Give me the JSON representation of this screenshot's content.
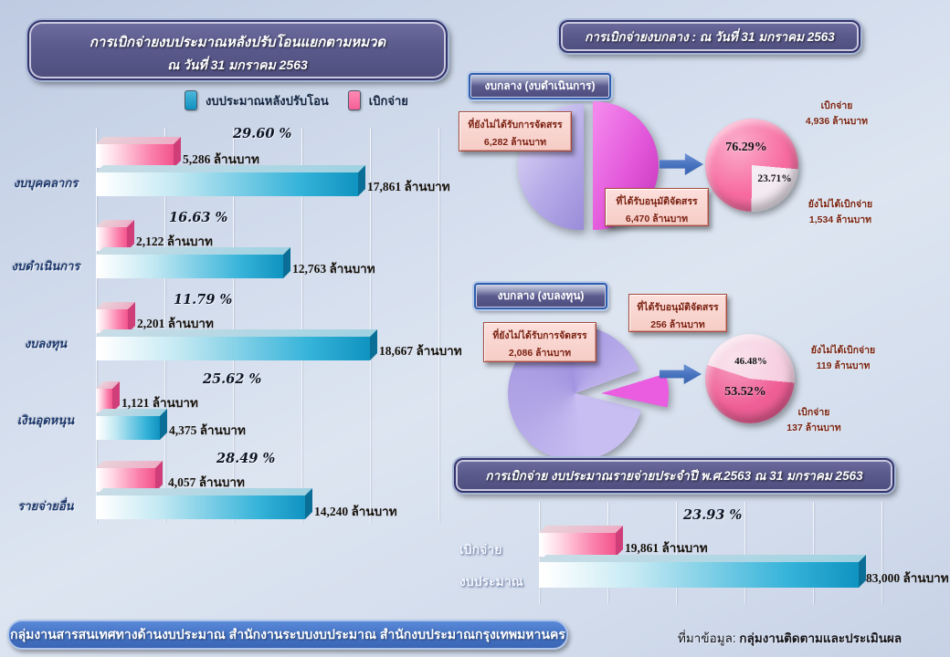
{
  "left_chart": {
    "title_line1": "การเบิกจ่ายงบประมาณหลังปรับโอนแยกตามหมวด",
    "title_line2": "ณ วันที่ 31 มกราคม 2563",
    "legend": [
      {
        "label": "งบประมาณหลังปรับโอน",
        "color": "#1090c0"
      },
      {
        "label": "เบิกจ่าย",
        "color": "#f76ba0"
      }
    ],
    "unit": "ล้านบาท",
    "rows": [
      {
        "category": "งบบุคคลากร",
        "percent_label": "29.60 %",
        "spent": 5286,
        "spent_label": "5,286  ล้านบาท",
        "budget": 17861,
        "budget_label": "17,861  ล้านบาท"
      },
      {
        "category": "งบดำเนินการ",
        "percent_label": "16.63 %",
        "spent": 2122,
        "spent_label": "2,122  ล้านบาท",
        "budget": 12763,
        "budget_label": "12,763  ล้านบาท"
      },
      {
        "category": "งบลงทุน",
        "percent_label": "11.79 %",
        "spent": 2201,
        "spent_label": "2,201  ล้านบาท",
        "budget": 18667,
        "budget_label": "18,667  ล้านบาท"
      },
      {
        "category": "เงินอุดหนุน",
        "percent_label": "25.62 %",
        "spent": 1121,
        "spent_label": "1,121  ล้านบาท",
        "budget": 4375,
        "budget_label": "4,375  ล้านบาท"
      },
      {
        "category": "รายจ่ายอื่น",
        "percent_label": "28.49 %",
        "spent": 4057,
        "spent_label": "4,057  ล้านบาท",
        "budget": 14240,
        "budget_label": "14,240  ล้านบาท"
      }
    ]
  },
  "central_fund": {
    "title": "การเบิกจ่ายงบกลาง : ณ วันที่ 31 มกราคม 2563",
    "operating": {
      "header": "งบกลาง (งบดำเนินการ)",
      "unallocated_label": "ที่ยังไม่ได้รับการจัดสรร",
      "unallocated_value": "6,282 ล้านบาท",
      "allocated_label": "ที่ได้รับอนุมัติจัดสรร",
      "allocated_value": "6,470 ล้านบาท",
      "spent_pct": "76.29%",
      "unspent_pct": "23.71%",
      "spent_label": "เบิกจ่าย",
      "spent_value": "4,936 ล้านบาท",
      "unspent_label": "ยังไม่ได้เบิกจ่าย",
      "unspent_value": "1,534 ล้านบาท"
    },
    "capital": {
      "header": "งบกลาง (งบลงทุน)",
      "unallocated_label": "ที่ยังไม่ได้รับการจัดสรร",
      "unallocated_value": "2,086 ล้านบาท",
      "allocated_label": "ที่ได้รับอนุมัติจัดสรร",
      "allocated_value": "256 ล้านบาท",
      "spent_pct": "53.52%",
      "unspent_pct": "46.48%",
      "spent_label": "เบิกจ่าย",
      "spent_value": "137 ล้านบาท",
      "unspent_label": "ยังไม่ได้เบิกจ่าย",
      "unspent_value": "119 ล้านบาท"
    }
  },
  "annual_chart": {
    "title": "การเบิกจ่าย งบประมาณรายจ่ายประจำปี  พ.ศ.2563  ณ  31 มกราคม 2563",
    "percent_label": "23.93 %",
    "rows": [
      {
        "category": "เบิกจ่าย",
        "value": 19861,
        "label": "19,861  ล้านบาท"
      },
      {
        "category": "งบประมาณ",
        "value": 83000,
        "label": "83,000  ล้านบาท"
      }
    ]
  },
  "footer": {
    "org": "กลุ่มงานสารสนเทศทางด้านงบประมาณ สำนักงานระบบงบประมาณ สำนักงบประมาณกรุงเทพมหานคร",
    "source_label": "ที่มาข้อมูล: ",
    "source_value": "กลุ่มงานติดตามและประเมินผล"
  },
  "chart_data": [
    {
      "type": "bar",
      "orientation": "horizontal",
      "title": "การเบิกจ่ายงบประมาณหลังปรับโอนแยกตามหมวด ณ วันที่ 31 มกราคม 2563",
      "categories": [
        "งบบุคคลากร",
        "งบดำเนินการ",
        "งบลงทุน",
        "เงินอุดหนุน",
        "รายจ่ายอื่น"
      ],
      "series": [
        {
          "name": "งบประมาณหลังปรับโอน",
          "color": "#1090c0",
          "values": [
            17861,
            12763,
            18667,
            4375,
            14240
          ]
        },
        {
          "name": "เบิกจ่าย",
          "color": "#f76ba0",
          "values": [
            5286,
            2122,
            2201,
            1121,
            4057
          ]
        }
      ],
      "percent_disbursed": [
        29.6,
        16.63,
        11.79,
        25.62,
        28.49
      ],
      "unit": "ล้านบาท",
      "xlim": [
        0,
        18667
      ],
      "legend_position": "top",
      "grid": true
    },
    {
      "type": "pie",
      "title": "งบกลาง (งบดำเนินการ) - การจัดสรร",
      "slices": [
        {
          "label": "ที่ได้รับอนุมัติจัดสรร",
          "value": 6470,
          "color": "#e256da"
        },
        {
          "label": "ที่ยังไม่ได้รับการจัดสรร",
          "value": 6282,
          "color": "#b7ace8"
        }
      ],
      "unit": "ล้านบาท"
    },
    {
      "type": "pie",
      "title": "งบกลาง (งบดำเนินการ) - การเบิกจ่าย",
      "slices": [
        {
          "label": "เบิกจ่าย",
          "value": 4936,
          "percent": 76.29,
          "color": "#f76ba0"
        },
        {
          "label": "ยังไม่ได้เบิกจ่าย",
          "value": 1534,
          "percent": 23.71,
          "color": "#f3eaf2"
        }
      ],
      "unit": "ล้านบาท"
    },
    {
      "type": "pie",
      "title": "งบกลาง (งบลงทุน) - การจัดสรร",
      "slices": [
        {
          "label": "ที่ได้รับอนุมัติจัดสรร",
          "value": 256,
          "color": "#ea5ce0"
        },
        {
          "label": "ที่ยังไม่ได้รับการจัดสรร",
          "value": 2086,
          "color": "#b4aae8"
        }
      ],
      "unit": "ล้านบาท"
    },
    {
      "type": "pie",
      "title": "งบกลาง (งบลงทุน) - การเบิกจ่าย",
      "slices": [
        {
          "label": "เบิกจ่าย",
          "value": 137,
          "percent": 53.52,
          "color": "#ef5f96"
        },
        {
          "label": "ยังไม่ได้เบิกจ่าย",
          "value": 119,
          "percent": 46.48,
          "color": "#f6cfe0"
        }
      ],
      "unit": "ล้านบาท"
    },
    {
      "type": "bar",
      "orientation": "horizontal",
      "title": "การเบิกจ่าย งบประมาณรายจ่ายประจำปี พ.ศ.2563 ณ 31 มกราคม 2563",
      "categories": [
        "เบิกจ่าย",
        "งบประมาณ"
      ],
      "values": [
        19861,
        83000
      ],
      "percent_disbursed": 23.93,
      "unit": "ล้านบาท",
      "xlim": [
        0,
        83000
      ],
      "grid": true
    }
  ]
}
